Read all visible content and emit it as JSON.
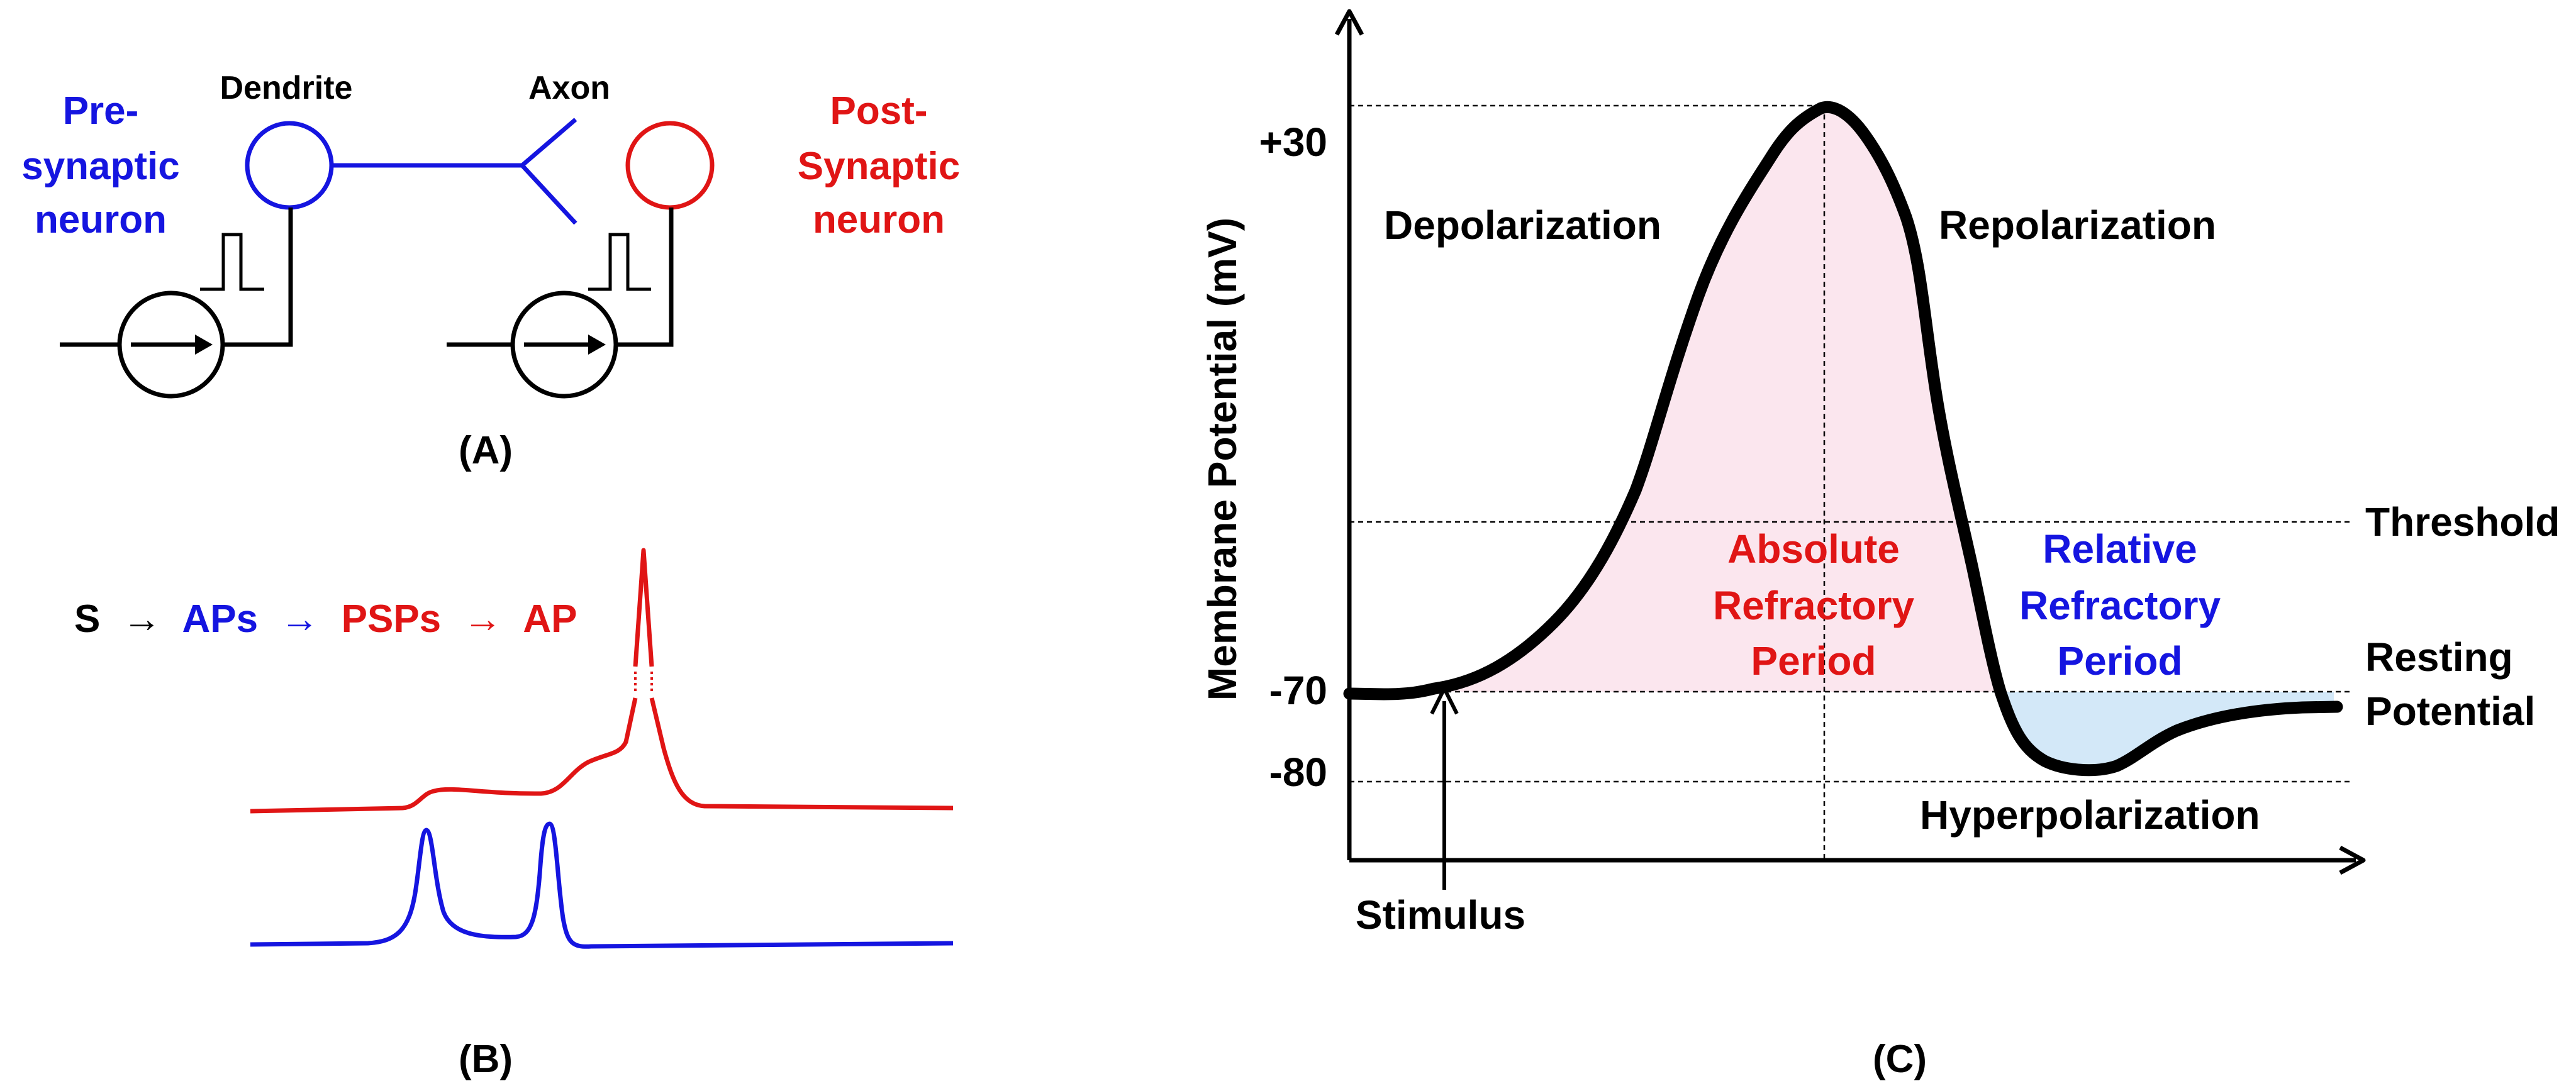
{
  "panel_a": {
    "caption": "(A)",
    "pre_label_line1": "Pre-",
    "pre_label_line2": "synaptic",
    "pre_label_line3": "neuron",
    "post_label_line1": "Post-",
    "post_label_line2": "Synaptic",
    "post_label_line3": "neuron",
    "dendrite_label": "Dendrite",
    "axon_label": "Axon"
  },
  "panel_b": {
    "caption": "(B)",
    "seq_s": "S",
    "seq_arrow1": "→",
    "seq_aps": "APs",
    "seq_arrow2": "→",
    "seq_psps": "PSPs",
    "seq_arrow3": "→",
    "seq_ap": "AP"
  },
  "panel_c": {
    "caption": "(C)",
    "ylabel": "Membrane Potential (mV)",
    "tick_plus30": "+30",
    "tick_minus70": "-70",
    "tick_minus80": "-80",
    "depolarization": "Depolarization",
    "repolarization": "Repolarization",
    "threshold": "Threshold",
    "resting_line1": "Resting",
    "resting_line2": "Potential",
    "hyperpolarization": "Hyperpolarization",
    "stimulus": "Stimulus",
    "absolute_line1": "Absolute",
    "absolute_line2": "Refractory",
    "absolute_line3": "Period",
    "relative_line1": "Relative",
    "relative_line2": "Refractory",
    "relative_line3": "Period"
  },
  "colors": {
    "pre": "#1515e0",
    "post": "#e01515",
    "trace": "#000000",
    "absolute_fill": "#fbe6ee",
    "relative_fill": "#d3e8f8"
  }
}
